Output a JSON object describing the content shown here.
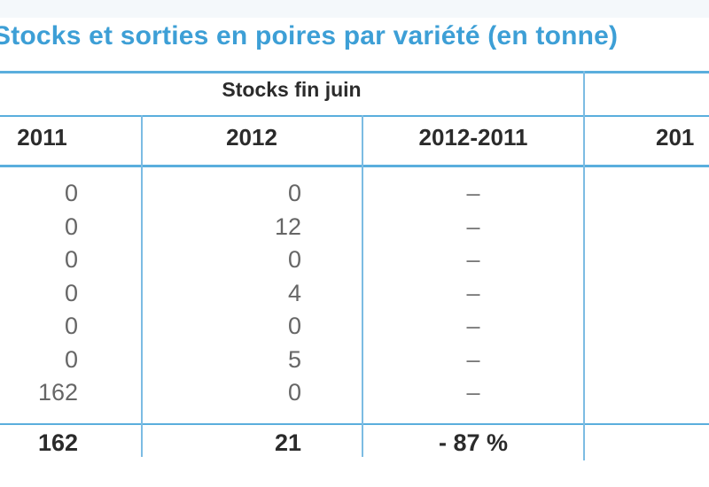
{
  "title": "Stocks et sorties en poires par variété (en tonne)",
  "group_header": "Stocks fin juin",
  "columns": [
    "2011",
    "2012",
    "2012-2011",
    "201"
  ],
  "rows": [
    {
      "y2011": "0",
      "y2012": "0",
      "diff": "–"
    },
    {
      "y2011": "0",
      "y2012": "12",
      "diff": "–"
    },
    {
      "y2011": "0",
      "y2012": "0",
      "diff": "–"
    },
    {
      "y2011": "0",
      "y2012": "4",
      "diff": "–"
    },
    {
      "y2011": "0",
      "y2012": "0",
      "diff": "–"
    },
    {
      "y2011": "0",
      "y2012": "5",
      "diff": "–"
    },
    {
      "y2011": "162",
      "y2012": "0",
      "diff": "–"
    }
  ],
  "total": {
    "y2011": "162",
    "y2012": "21",
    "diff": "- 87 %"
  },
  "colors": {
    "title": "#3d9fd6",
    "rule": "#5aaedd"
  }
}
